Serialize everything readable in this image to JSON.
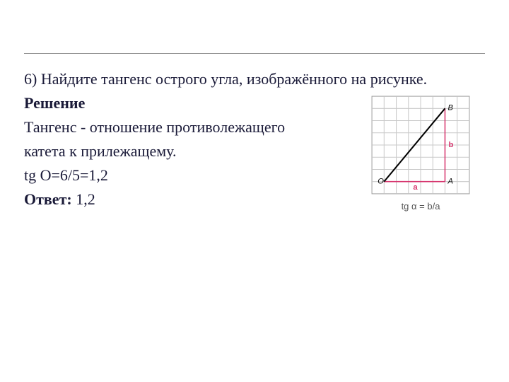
{
  "text": {
    "line1": "6) Найдите тангенс острого угла, изображённого на рисунке.",
    "line2": "Решение",
    "line3": "Тангенс - отношение противолежащего",
    "line4": "катета к прилежащему.",
    "line5": "tg O=6/5=1,2",
    "line6_prefix": "Ответ: ",
    "line6_value": "1,2"
  },
  "diagram": {
    "type": "grid-geometry",
    "grid": {
      "cols": 8,
      "rows": 8,
      "cell": 17
    },
    "axes": {
      "origin_col": 1,
      "origin_row": 7
    },
    "point_B": {
      "col": 6,
      "row": 1
    },
    "point_A": {
      "col": 6,
      "row": 7
    },
    "labels": {
      "O": "O",
      "A": "A",
      "B": "B",
      "a": "a",
      "b": "b"
    },
    "colors": {
      "grid": "#c9c9c9",
      "frame": "#9d9d9d",
      "hypotenuse": "#000000",
      "legs": "#d6336c",
      "text": "#000000",
      "leg_label": "#d6336c"
    },
    "stroke": {
      "grid": 1,
      "hypotenuse": 2,
      "legs": 1.5
    },
    "caption": "tg α = b/a",
    "width": 150,
    "height": 150
  }
}
